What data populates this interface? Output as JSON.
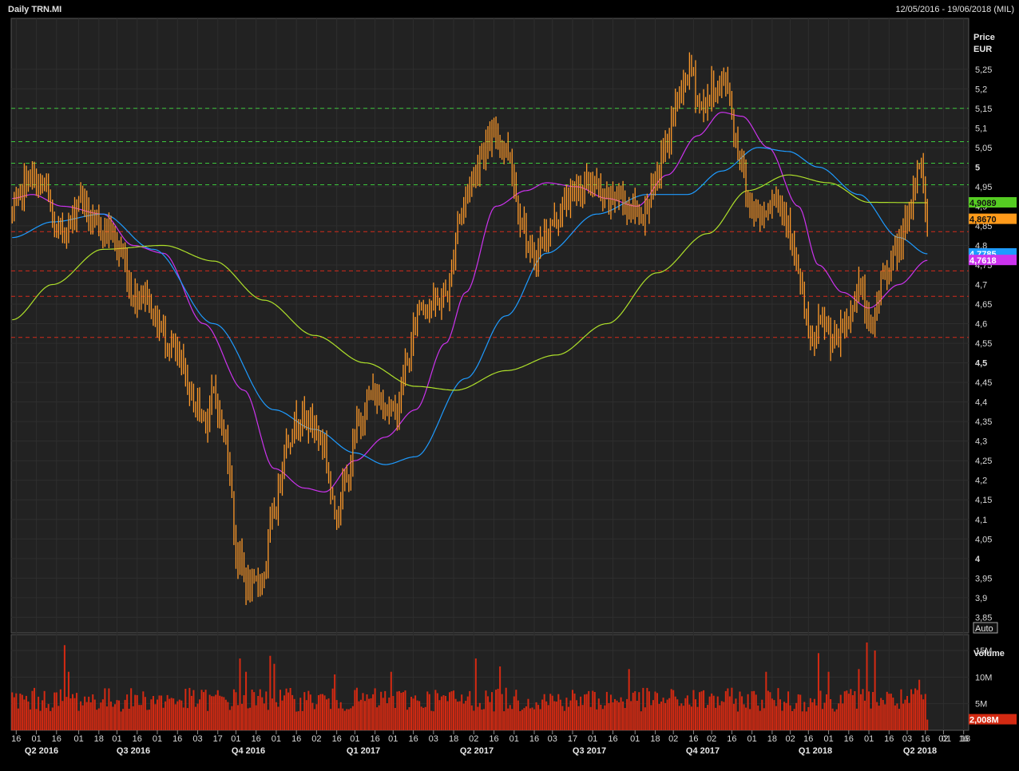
{
  "header": {
    "title": "Daily TRN.MI",
    "date_range": "12/05/2016 - 19/06/2018 (MIL)"
  },
  "chart_data": {
    "type": "candlestick",
    "price_panel": {
      "axis_title": "Price",
      "axis_unit": "EUR",
      "ylim": [
        3.81,
        5.38
      ],
      "ticks": [
        "5,25",
        "5,2",
        "5,15",
        "5,1",
        "5,05",
        "5",
        "4,95",
        "4,9",
        "4,85",
        "4,8",
        "4,75",
        "4,7",
        "4,65",
        "4,6",
        "4,55",
        "4,5",
        "4,45",
        "4,4",
        "4,35",
        "4,3",
        "4,25",
        "4,2",
        "4,15",
        "4,1",
        "4,05",
        "4",
        "3,95",
        "3,9",
        "3,85"
      ],
      "tick_values": [
        5.25,
        5.2,
        5.15,
        5.1,
        5.05,
        5,
        4.95,
        4.9,
        4.85,
        4.8,
        4.75,
        4.7,
        4.65,
        4.6,
        4.55,
        4.5,
        4.45,
        4.4,
        4.35,
        4.3,
        4.25,
        4.2,
        4.15,
        4.1,
        4.05,
        4,
        3.95,
        3.9,
        3.85
      ],
      "bold_ticks": [
        "5",
        "4,5",
        "4"
      ],
      "scale_button": "Auto",
      "resistance_levels": [
        5.15,
        5.065,
        5.01,
        4.955
      ],
      "support_levels": [
        4.835,
        4.735,
        4.67,
        4.565
      ],
      "badges": [
        {
          "label": "4,9089",
          "value": 4.9089,
          "color": "#55cc22"
        },
        {
          "label": "4,8670",
          "value": 4.867,
          "color": "#ff9a1a"
        },
        {
          "label": "4,7785",
          "value": 4.7785,
          "color": "#1e9bff"
        },
        {
          "label": "4,7618",
          "value": 4.7618,
          "color": "#cc33ee"
        }
      ],
      "price_path": [
        {
          "bar": 0,
          "price": 4.88
        },
        {
          "bar": 8,
          "price": 4.97
        },
        {
          "bar": 16,
          "price": 4.95
        },
        {
          "bar": 22,
          "price": 4.83
        },
        {
          "bar": 28,
          "price": 4.85
        },
        {
          "bar": 34,
          "price": 4.93
        },
        {
          "bar": 40,
          "price": 4.85
        },
        {
          "bar": 48,
          "price": 4.84
        },
        {
          "bar": 54,
          "price": 4.78
        },
        {
          "bar": 60,
          "price": 4.67
        },
        {
          "bar": 66,
          "price": 4.68
        },
        {
          "bar": 72,
          "price": 4.6
        },
        {
          "bar": 78,
          "price": 4.55
        },
        {
          "bar": 84,
          "price": 4.49
        },
        {
          "bar": 90,
          "price": 4.4
        },
        {
          "bar": 96,
          "price": 4.36
        },
        {
          "bar": 100,
          "price": 4.42
        },
        {
          "bar": 106,
          "price": 4.3
        },
        {
          "bar": 112,
          "price": 4.0
        },
        {
          "bar": 118,
          "price": 3.92
        },
        {
          "bar": 124,
          "price": 3.95
        },
        {
          "bar": 130,
          "price": 4.12
        },
        {
          "bar": 136,
          "price": 4.3
        },
        {
          "bar": 142,
          "price": 4.36
        },
        {
          "bar": 148,
          "price": 4.35
        },
        {
          "bar": 154,
          "price": 4.3
        },
        {
          "bar": 160,
          "price": 4.12
        },
        {
          "bar": 166,
          "price": 4.2
        },
        {
          "bar": 172,
          "price": 4.35
        },
        {
          "bar": 178,
          "price": 4.42
        },
        {
          "bar": 184,
          "price": 4.4
        },
        {
          "bar": 190,
          "price": 4.37
        },
        {
          "bar": 196,
          "price": 4.5
        },
        {
          "bar": 202,
          "price": 4.65
        },
        {
          "bar": 210,
          "price": 4.65
        },
        {
          "bar": 216,
          "price": 4.68
        },
        {
          "bar": 222,
          "price": 4.88
        },
        {
          "bar": 228,
          "price": 4.97
        },
        {
          "bar": 234,
          "price": 5.05
        },
        {
          "bar": 240,
          "price": 5.08
        },
        {
          "bar": 246,
          "price": 5.04
        },
        {
          "bar": 252,
          "price": 4.88
        },
        {
          "bar": 258,
          "price": 4.76
        },
        {
          "bar": 264,
          "price": 4.82
        },
        {
          "bar": 270,
          "price": 4.87
        },
        {
          "bar": 276,
          "price": 4.92
        },
        {
          "bar": 282,
          "price": 4.95
        },
        {
          "bar": 288,
          "price": 4.96
        },
        {
          "bar": 294,
          "price": 4.91
        },
        {
          "bar": 300,
          "price": 4.93
        },
        {
          "bar": 306,
          "price": 4.9
        },
        {
          "bar": 312,
          "price": 4.88
        },
        {
          "bar": 318,
          "price": 4.94
        },
        {
          "bar": 324,
          "price": 5.05
        },
        {
          "bar": 330,
          "price": 5.17
        },
        {
          "bar": 336,
          "price": 5.25
        },
        {
          "bar": 342,
          "price": 5.15
        },
        {
          "bar": 348,
          "price": 5.2
        },
        {
          "bar": 354,
          "price": 5.22
        },
        {
          "bar": 360,
          "price": 5.05
        },
        {
          "bar": 366,
          "price": 4.9
        },
        {
          "bar": 372,
          "price": 4.88
        },
        {
          "bar": 378,
          "price": 4.93
        },
        {
          "bar": 384,
          "price": 4.88
        },
        {
          "bar": 390,
          "price": 4.72
        },
        {
          "bar": 396,
          "price": 4.55
        },
        {
          "bar": 402,
          "price": 4.6
        },
        {
          "bar": 408,
          "price": 4.55
        },
        {
          "bar": 414,
          "price": 4.6
        },
        {
          "bar": 420,
          "price": 4.7
        },
        {
          "bar": 426,
          "price": 4.58
        },
        {
          "bar": 432,
          "price": 4.72
        },
        {
          "bar": 438,
          "price": 4.78
        },
        {
          "bar": 444,
          "price": 4.85
        },
        {
          "bar": 450,
          "price": 5.02
        },
        {
          "bar": 454,
          "price": 4.87
        }
      ],
      "moving_averages": [
        {
          "color": "#cc33ee",
          "points": [
            {
              "bar": 0,
              "price": 4.92
            },
            {
              "bar": 10,
              "price": 4.93
            },
            {
              "bar": 25,
              "price": 4.9
            },
            {
              "bar": 45,
              "price": 4.88
            },
            {
              "bar": 60,
              "price": 4.8
            },
            {
              "bar": 75,
              "price": 4.78
            },
            {
              "bar": 95,
              "price": 4.6
            },
            {
              "bar": 115,
              "price": 4.43
            },
            {
              "bar": 130,
              "price": 4.23
            },
            {
              "bar": 145,
              "price": 4.18
            },
            {
              "bar": 155,
              "price": 4.17
            },
            {
              "bar": 170,
              "price": 4.25
            },
            {
              "bar": 185,
              "price": 4.31
            },
            {
              "bar": 200,
              "price": 4.38
            },
            {
              "bar": 215,
              "price": 4.55
            },
            {
              "bar": 225,
              "price": 4.68
            },
            {
              "bar": 240,
              "price": 4.9
            },
            {
              "bar": 255,
              "price": 4.94
            },
            {
              "bar": 265,
              "price": 4.96
            },
            {
              "bar": 280,
              "price": 4.95
            },
            {
              "bar": 295,
              "price": 4.92
            },
            {
              "bar": 310,
              "price": 4.9
            },
            {
              "bar": 325,
              "price": 4.98
            },
            {
              "bar": 340,
              "price": 5.08
            },
            {
              "bar": 352,
              "price": 5.14
            },
            {
              "bar": 362,
              "price": 5.13
            },
            {
              "bar": 375,
              "price": 5.05
            },
            {
              "bar": 390,
              "price": 4.9
            },
            {
              "bar": 400,
              "price": 4.75
            },
            {
              "bar": 412,
              "price": 4.68
            },
            {
              "bar": 425,
              "price": 4.64
            },
            {
              "bar": 440,
              "price": 4.7
            },
            {
              "bar": 454,
              "price": 4.7618
            }
          ]
        },
        {
          "color": "#1e9bff",
          "points": [
            {
              "bar": 0,
              "price": 4.82
            },
            {
              "bar": 20,
              "price": 4.86
            },
            {
              "bar": 45,
              "price": 4.88
            },
            {
              "bar": 70,
              "price": 4.79
            },
            {
              "bar": 100,
              "price": 4.6
            },
            {
              "bar": 130,
              "price": 4.38
            },
            {
              "bar": 150,
              "price": 4.33
            },
            {
              "bar": 170,
              "price": 4.27
            },
            {
              "bar": 185,
              "price": 4.24
            },
            {
              "bar": 200,
              "price": 4.26
            },
            {
              "bar": 225,
              "price": 4.46
            },
            {
              "bar": 245,
              "price": 4.62
            },
            {
              "bar": 265,
              "price": 4.78
            },
            {
              "bar": 290,
              "price": 4.88
            },
            {
              "bar": 315,
              "price": 4.93
            },
            {
              "bar": 335,
              "price": 4.93
            },
            {
              "bar": 352,
              "price": 4.99
            },
            {
              "bar": 370,
              "price": 5.05
            },
            {
              "bar": 385,
              "price": 5.04
            },
            {
              "bar": 400,
              "price": 5.0
            },
            {
              "bar": 420,
              "price": 4.93
            },
            {
              "bar": 440,
              "price": 4.82
            },
            {
              "bar": 454,
              "price": 4.7785
            }
          ]
        },
        {
          "color": "#aee02a",
          "points": [
            {
              "bar": 0,
              "price": 4.61
            },
            {
              "bar": 20,
              "price": 4.7
            },
            {
              "bar": 45,
              "price": 4.79
            },
            {
              "bar": 75,
              "price": 4.8
            },
            {
              "bar": 100,
              "price": 4.76
            },
            {
              "bar": 125,
              "price": 4.66
            },
            {
              "bar": 150,
              "price": 4.57
            },
            {
              "bar": 175,
              "price": 4.5
            },
            {
              "bar": 200,
              "price": 4.44
            },
            {
              "bar": 220,
              "price": 4.43
            },
            {
              "bar": 245,
              "price": 4.48
            },
            {
              "bar": 270,
              "price": 4.52
            },
            {
              "bar": 295,
              "price": 4.6
            },
            {
              "bar": 320,
              "price": 4.73
            },
            {
              "bar": 345,
              "price": 4.83
            },
            {
              "bar": 365,
              "price": 4.94
            },
            {
              "bar": 385,
              "price": 4.98
            },
            {
              "bar": 405,
              "price": 4.96
            },
            {
              "bar": 425,
              "price": 4.91
            },
            {
              "bar": 454,
              "price": 4.9089
            }
          ]
        }
      ]
    },
    "volume_panel": {
      "axis_title": "Volume",
      "ylim": [
        0,
        18
      ],
      "ticks": [
        "15M",
        "10M",
        "5M"
      ],
      "tick_values": [
        15,
        10,
        5
      ],
      "last_badge": "2,008M",
      "last_value": 2.008,
      "bar_color": "#d42a12",
      "spikes": [
        {
          "bar": 26,
          "value": 16
        },
        {
          "bar": 28,
          "value": 11
        },
        {
          "bar": 113,
          "value": 13.5
        },
        {
          "bar": 116,
          "value": 11
        },
        {
          "bar": 128,
          "value": 14
        },
        {
          "bar": 130,
          "value": 12.5
        },
        {
          "bar": 160,
          "value": 10.5
        },
        {
          "bar": 188,
          "value": 11
        },
        {
          "bar": 230,
          "value": 13.5
        },
        {
          "bar": 242,
          "value": 12
        },
        {
          "bar": 306,
          "value": 11.5
        },
        {
          "bar": 374,
          "value": 11
        },
        {
          "bar": 400,
          "value": 14.5
        },
        {
          "bar": 405,
          "value": 11
        },
        {
          "bar": 420,
          "value": 11.5
        },
        {
          "bar": 424,
          "value": 16.5
        },
        {
          "bar": 428,
          "value": 15
        },
        {
          "bar": 450,
          "value": 9.5
        }
      ]
    },
    "x_axis": {
      "n_bars": 455,
      "n_slots": 475,
      "date_ticks": [
        {
          "label": "16",
          "slot": 2
        },
        {
          "label": "01",
          "slot": 12
        },
        {
          "label": "16",
          "slot": 22
        },
        {
          "label": "01",
          "slot": 33
        },
        {
          "label": "18",
          "slot": 43
        },
        {
          "label": "01",
          "slot": 52
        },
        {
          "label": "16",
          "slot": 62
        },
        {
          "label": "01",
          "slot": 72
        },
        {
          "label": "16",
          "slot": 82
        },
        {
          "label": "03",
          "slot": 92
        },
        {
          "label": "17",
          "slot": 102
        },
        {
          "label": "01",
          "slot": 111
        },
        {
          "label": "16",
          "slot": 121
        },
        {
          "label": "01",
          "slot": 131
        },
        {
          "label": "16",
          "slot": 141
        },
        {
          "label": "02",
          "slot": 151
        },
        {
          "label": "16",
          "slot": 161
        },
        {
          "label": "01",
          "slot": 170
        },
        {
          "label": "16",
          "slot": 180
        },
        {
          "label": "01",
          "slot": 189
        },
        {
          "label": "16",
          "slot": 199
        },
        {
          "label": "03",
          "slot": 209
        },
        {
          "label": "18",
          "slot": 219
        },
        {
          "label": "02",
          "slot": 229
        },
        {
          "label": "16",
          "slot": 239
        },
        {
          "label": "01",
          "slot": 249
        },
        {
          "label": "16",
          "slot": 259
        },
        {
          "label": "03",
          "slot": 268
        },
        {
          "label": "17",
          "slot": 278
        },
        {
          "label": "01",
          "slot": 288
        },
        {
          "label": "16",
          "slot": 298
        },
        {
          "label": "01",
          "slot": 309
        },
        {
          "label": "18",
          "slot": 319
        },
        {
          "label": "02",
          "slot": 328
        },
        {
          "label": "16",
          "slot": 338
        },
        {
          "label": "02",
          "slot": 347
        },
        {
          "label": "16",
          "slot": 357
        },
        {
          "label": "01",
          "slot": 367
        },
        {
          "label": "18",
          "slot": 377
        },
        {
          "label": "02",
          "slot": 386
        },
        {
          "label": "16",
          "slot": 395
        },
        {
          "label": "01",
          "slot": 405
        },
        {
          "label": "16",
          "slot": 415
        },
        {
          "label": "01",
          "slot": 425
        },
        {
          "label": "16",
          "slot": 435
        },
        {
          "label": "03",
          "slot": 444
        },
        {
          "label": "16",
          "slot": 453
        },
        {
          "label": "02",
          "slot": 462
        },
        {
          "label": "16",
          "slot": 472
        }
      ],
      "extra_ticks": [
        {
          "label": "01",
          "x": 1185
        },
        {
          "label": "18",
          "x": 1209
        }
      ],
      "quarters": [
        {
          "label": "Q2 2016",
          "x": 52
        },
        {
          "label": "Q3 2016",
          "x": 167
        },
        {
          "label": "Q4 2016",
          "x": 311
        },
        {
          "label": "Q1 2017",
          "x": 455
        },
        {
          "label": "Q2 2017",
          "x": 597
        },
        {
          "label": "Q3 2017",
          "x": 738
        },
        {
          "label": "Q4 2017",
          "x": 880
        },
        {
          "label": "Q1 2018",
          "x": 1021
        },
        {
          "label": "Q2 2018",
          "x": 1152
        }
      ]
    }
  }
}
